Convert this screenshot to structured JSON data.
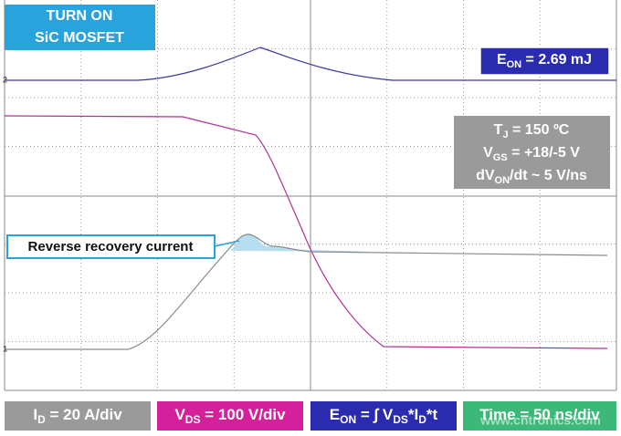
{
  "title_box": {
    "lines": [
      "TURN ON",
      "SiC MOSFET"
    ]
  },
  "energy_box": {
    "parts": [
      {
        "text": "E"
      },
      {
        "text": "ON",
        "sub": true
      },
      {
        "text": " = 2.69 mJ"
      }
    ]
  },
  "conditions": {
    "lines": [
      [
        {
          "text": "T"
        },
        {
          "text": "J",
          "sub": true
        },
        {
          "text": " = 150 ºC"
        }
      ],
      [
        {
          "text": "V"
        },
        {
          "text": "GS",
          "sub": true
        },
        {
          "text": " = +18/-5 V"
        }
      ],
      [
        {
          "text": "dV"
        },
        {
          "text": "ON",
          "sub": true
        },
        {
          "text": "/dt ~ 5 V/ns"
        }
      ]
    ]
  },
  "annotation": "Reverse recovery current",
  "channel_markers": [
    "2",
    "1"
  ],
  "footer": [
    {
      "parts": [
        {
          "text": "I"
        },
        {
          "text": "D",
          "sub": true
        },
        {
          "text": " = 20 A/div"
        }
      ]
    },
    {
      "parts": [
        {
          "text": "V"
        },
        {
          "text": "DS",
          "sub": true
        },
        {
          "text": " = 100 V/div"
        }
      ]
    },
    {
      "parts": [
        {
          "text": "E"
        },
        {
          "text": "ON",
          "sub": true
        },
        {
          "text": " = ∫ V"
        },
        {
          "text": "DS",
          "sub": true
        },
        {
          "text": "*I"
        },
        {
          "text": "D",
          "sub": true
        },
        {
          "text": "*t"
        }
      ]
    },
    {
      "parts": [
        {
          "text": "Time = 50 ns/div"
        }
      ]
    }
  ],
  "watermark": "www.cntronics.com"
}
